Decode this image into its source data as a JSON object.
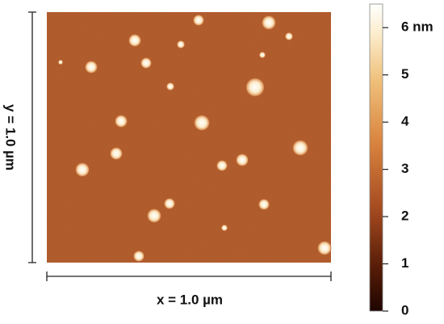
{
  "image": {
    "x_label": "x = 1.0 µm",
    "y_label": "y = 1.0 µm"
  },
  "colorbar": {
    "range": [
      0,
      6.5
    ],
    "ticks": [
      0,
      1,
      2,
      3,
      4,
      5,
      {
        "value": 6,
        "label": "6 nm"
      }
    ]
  }
}
